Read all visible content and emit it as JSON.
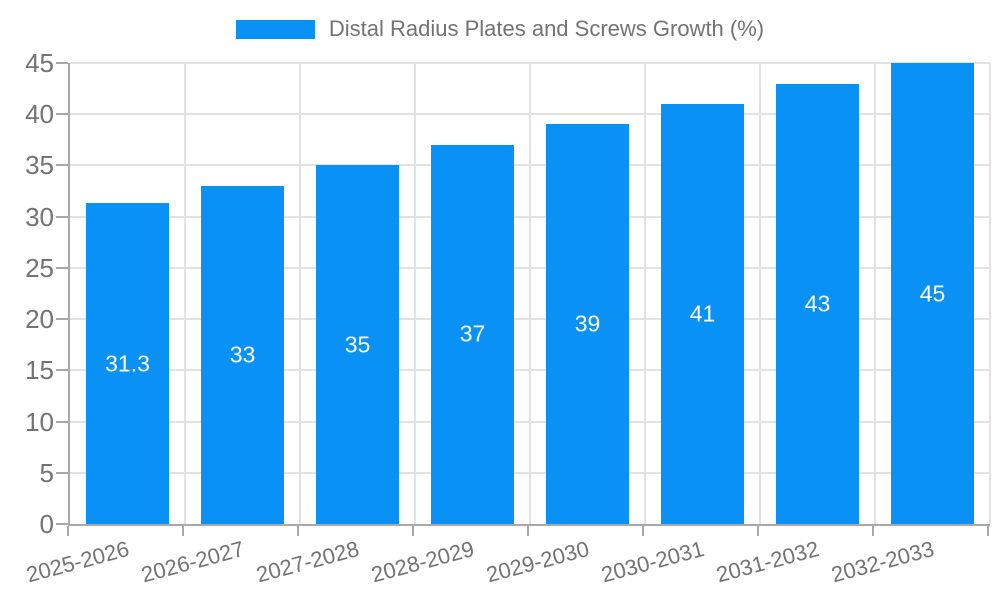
{
  "legend": {
    "series_label": "Distal Radius Plates and Screws Growth (%)"
  },
  "chart_data": {
    "type": "bar",
    "title": "Distal Radius Plates and Screws Growth (%)",
    "categories": [
      "2025-2026",
      "2026-2027",
      "2027-2028",
      "2028-2029",
      "2029-2030",
      "2030-2031",
      "2031-2032",
      "2032-2033"
    ],
    "series": [
      {
        "name": "Distal Radius Plates and Screws Growth (%)",
        "values": [
          31.3,
          33,
          35,
          37,
          39,
          41,
          43,
          45
        ]
      }
    ],
    "value_labels": [
      "31.3",
      "33",
      "35",
      "37",
      "39",
      "41",
      "43",
      "45"
    ],
    "xlabel": "",
    "ylabel": "",
    "ylim": [
      0,
      45
    ],
    "yticks": [
      0,
      5,
      10,
      15,
      20,
      25,
      30,
      35,
      40,
      45
    ],
    "grid": true,
    "legend_position": "top-center",
    "colors": {
      "bar": "#0a91f5",
      "value_label": "#ffffff",
      "axis_text": "#737373",
      "gridline": "#e2e2e2",
      "axis_line": "#a8a8a8",
      "background": "#ffffff"
    }
  }
}
